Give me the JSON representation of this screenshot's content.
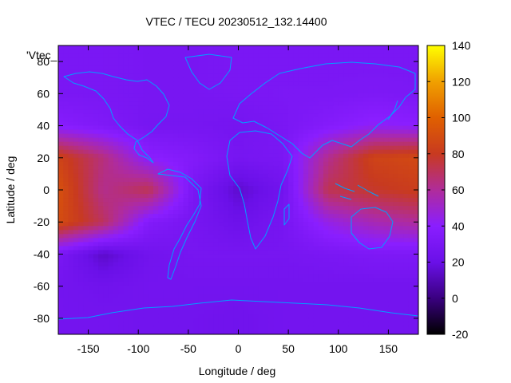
{
  "chart_data": {
    "type": "heatmap",
    "title": "VTEC / TECU 20230512_132.14400",
    "xlabel": "Longitude / deg",
    "ylabel": "Latitude / deg",
    "xlim": [
      -180,
      180
    ],
    "ylim": [
      -90,
      90
    ],
    "xticks": [
      -150,
      -100,
      -50,
      0,
      50,
      100,
      150
    ],
    "yticks": [
      -80,
      -60,
      -40,
      -20,
      0,
      20,
      40,
      60,
      80
    ],
    "grid": false,
    "legend": {
      "label": "'Vtec_",
      "placement": "top-left"
    },
    "colorbar": {
      "min": -20,
      "max": 140,
      "ticks": [
        -20,
        0,
        20,
        40,
        60,
        80,
        100,
        120,
        140
      ],
      "colormap": "gnuplot-pm3d-black-purple-red-orange-yellow"
    },
    "coastline_color": "#00a0ff",
    "grid_values": {
      "lon_step": 45,
      "lat_step": 20,
      "lons": [
        -180,
        -135,
        -90,
        -45,
        0,
        45,
        90,
        135,
        180
      ],
      "lats": [
        80,
        60,
        40,
        20,
        0,
        -20,
        -40,
        -60,
        -80
      ],
      "vtec": [
        [
          30,
          30,
          29,
          29,
          30,
          30,
          30,
          30,
          30
        ],
        [
          30,
          30,
          29,
          29,
          30,
          31,
          31,
          32,
          31
        ],
        [
          38,
          33,
          28,
          28,
          27,
          30,
          36,
          42,
          40
        ],
        [
          85,
          65,
          40,
          35,
          28,
          30,
          62,
          85,
          88
        ],
        [
          92,
          62,
          72,
          30,
          15,
          25,
          72,
          78,
          82
        ],
        [
          90,
          70,
          35,
          28,
          22,
          28,
          45,
          55,
          60
        ],
        [
          30,
          14,
          25,
          28,
          28,
          28,
          30,
          32,
          32
        ],
        [
          26,
          24,
          26,
          26,
          26,
          26,
          26,
          26,
          26
        ],
        [
          26,
          26,
          25,
          25,
          24,
          26,
          26,
          26,
          26
        ]
      ]
    }
  }
}
